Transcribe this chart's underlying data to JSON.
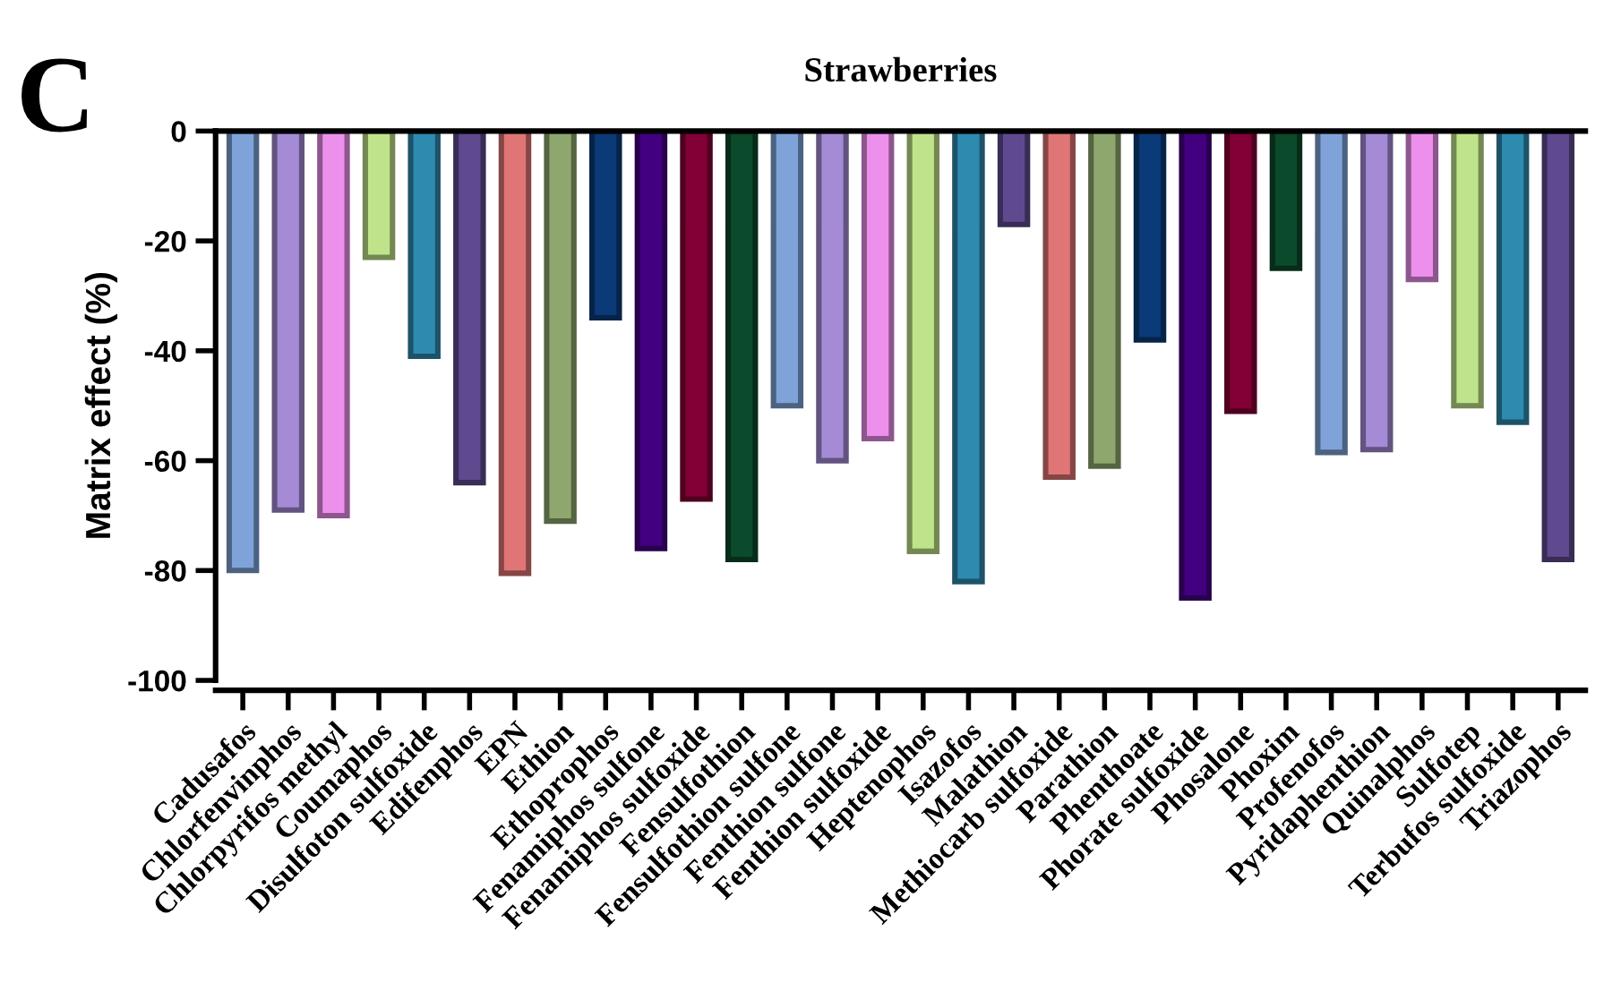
{
  "chart_data": {
    "type": "bar",
    "title": "Strawberries",
    "ylabel": "Matrix effect (%)",
    "annotations": [
      "C"
    ],
    "categories": [
      "Cadusafos",
      "Chlorfenvinphos",
      "Chlorpyrifos methyl",
      "Coumaphos",
      "Disulfoton sulfoxide",
      "Edifenphos",
      "EPN",
      "Ethion",
      "Ethoprophos",
      "Fenamiphos sulfone",
      "Fenamiphos sulfoxide",
      "Fensulfothion",
      "Fensulfothion sulfone",
      "Fenthion sulfone",
      "Fenthion sulfoxide",
      "Heptenophos",
      "Isazofos",
      "Malathion",
      "Methiocarb sulfoxide",
      "Parathion",
      "Phenthoate",
      "Phorate sulfoxide",
      "Phosalone",
      "Phoxim",
      "Profenofos",
      "Pyridaphenthion",
      "Quinalphos",
      "Sulfotep",
      "Terbufos sulfoxide",
      "Triazophos"
    ],
    "values": [
      -80,
      -69,
      -70,
      -23,
      -41,
      -64,
      -80.5,
      -71,
      -34,
      -76,
      -67,
      -78,
      -50,
      -60,
      -56,
      -76.5,
      -82,
      -17,
      -63,
      -61,
      -38,
      -85,
      -51,
      -25,
      -58.5,
      -58,
      -27,
      -50,
      -53,
      -78
    ],
    "colors": [
      "#7fa3d9",
      "#a58bd6",
      "#ec90ec",
      "#bfe38a",
      "#2e8bb0",
      "#5f4a8f",
      "#e07575",
      "#8da76e",
      "#0a3a78",
      "#420080",
      "#820035",
      "#0b4a2a",
      "#7fa3d9",
      "#a58bd6",
      "#ec90ec",
      "#bfe38a",
      "#2e8bb0",
      "#5f4a8f",
      "#e07575",
      "#8da76e",
      "#0a3a78",
      "#420080",
      "#820035",
      "#0b4a2a",
      "#7fa3d9",
      "#a58bd6",
      "#ec90ec",
      "#bfe38a",
      "#2e8bb0",
      "#5f4a8f"
    ],
    "ylim": [
      -100,
      0
    ],
    "yticks": [
      -100,
      -80,
      -60,
      -40,
      -20,
      0
    ],
    "grid": false,
    "legend": false
  }
}
